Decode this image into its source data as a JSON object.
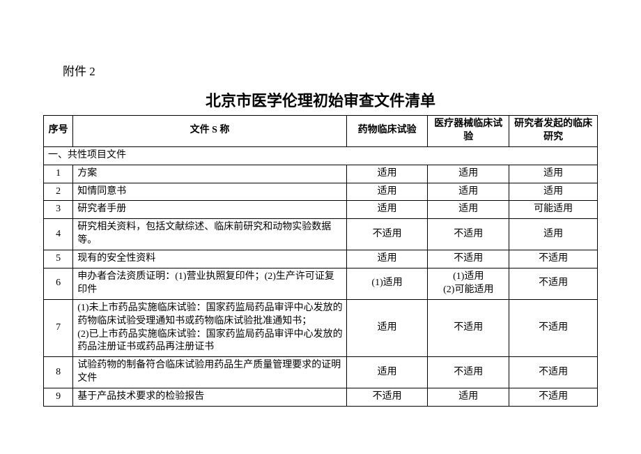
{
  "attachment_label": "附件 2",
  "title": "北京市医学伦理初始审查文件清单",
  "columns": {
    "seq": "序号",
    "name": "文件 S 称",
    "c1": "药物临床试验",
    "c2": "医疗器械临床试验",
    "c3": "研究者发起的临床研究"
  },
  "section_header": "一、共性项目文件",
  "rows": [
    {
      "seq": "1",
      "name": "方案",
      "c1": "适用",
      "c2": "适用",
      "c3": "适用"
    },
    {
      "seq": "2",
      "name": "知情同意书",
      "c1": "适用",
      "c2": "适用",
      "c3": "适用"
    },
    {
      "seq": "3",
      "name": "研究者手册",
      "c1": "适用",
      "c2": "适用",
      "c3": "可能适用"
    },
    {
      "seq": "4",
      "name": "研究相关资料，包括文献综述、临床前研究和动物实验数据等。",
      "c1": "不适用",
      "c2": "不适用",
      "c3": "适用"
    },
    {
      "seq": "5",
      "name": "现有的安全性资料",
      "c1": "适用",
      "c2": "不适用",
      "c3": "不适用"
    },
    {
      "seq": "6",
      "name": "申办者合法资质证明：(1)营业执照复印件；(2)生产许可证复印件",
      "c1": "(1)适用",
      "c2": "(1)适用\n(2)可能适用",
      "c3": "不适用"
    },
    {
      "seq": "7",
      "name": "(1)未上市药品实施临床试验：国家药监局药品审评中心发放的药物临床试验受理通知书或药物临床试验批准通知书；\n(2)已上市药品实施临床试验：国家药监局药品审评中心发放的药品注册证书或药品再注册证书",
      "c1": "适用",
      "c2": "不适用",
      "c3": "不适用"
    },
    {
      "seq": "8",
      "name": "试验药物的制备符合临床试验用药品生产质量管理要求的证明文件",
      "c1": "适用",
      "c2": "不适用",
      "c3": "不适用"
    },
    {
      "seq": "9",
      "name": "基于产品技术要求的检验报告",
      "c1": "不适用",
      "c2": "适用",
      "c3": "不适用"
    }
  ]
}
